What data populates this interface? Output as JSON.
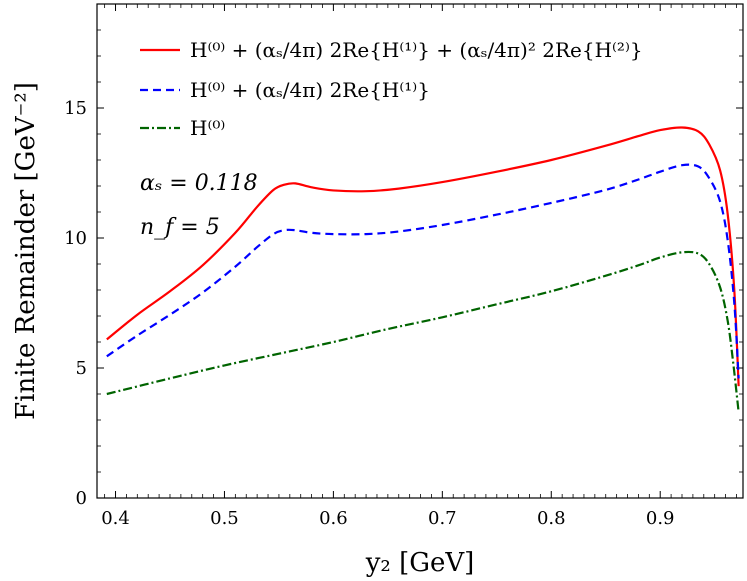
{
  "chart_data": {
    "type": "line",
    "xlabel": "y₂ [GeV]",
    "ylabel": "Finite Remainder [GeV⁻²]",
    "xlim": [
      0.383,
      0.976
    ],
    "ylim": [
      0,
      19
    ],
    "x_ticks": [
      0.4,
      0.5,
      0.6,
      0.7,
      0.8,
      0.9
    ],
    "y_ticks": [
      0,
      5,
      10,
      15
    ],
    "x_tick_labels": [
      "0.4",
      "0.5",
      "0.6",
      "0.7",
      "0.8",
      "0.9"
    ],
    "y_tick_labels": [
      "0",
      "5",
      "10",
      "15"
    ],
    "legend_position": "top-left",
    "grid": false,
    "annotations": [
      "αₛ = 0.118",
      "n_f = 5"
    ],
    "series": [
      {
        "name": "H⁽⁰⁾ + (αₛ/4π) 2Re{H⁽¹⁾} + (αₛ/4π)² 2Re{H⁽²⁾}",
        "color": "#ff0000",
        "dash": "solid",
        "x": [
          0.392,
          0.42,
          0.45,
          0.48,
          0.51,
          0.53,
          0.545,
          0.555,
          0.565,
          0.58,
          0.6,
          0.63,
          0.66,
          0.7,
          0.75,
          0.8,
          0.85,
          0.88,
          0.9,
          0.92,
          0.935,
          0.945,
          0.955,
          0.962,
          0.968,
          0.972
        ],
        "y": [
          6.1,
          7.05,
          7.95,
          8.95,
          10.2,
          11.2,
          11.85,
          12.05,
          12.1,
          11.95,
          11.83,
          11.8,
          11.9,
          12.15,
          12.55,
          13.0,
          13.55,
          13.92,
          14.15,
          14.25,
          14.1,
          13.6,
          12.6,
          10.9,
          8.0,
          4.3
        ]
      },
      {
        "name": "H⁽⁰⁾ + (αₛ/4π) 2Re{H⁽¹⁾}",
        "color": "#0000ff",
        "dash": "dashed",
        "x": [
          0.392,
          0.42,
          0.45,
          0.48,
          0.51,
          0.53,
          0.545,
          0.555,
          0.565,
          0.58,
          0.6,
          0.63,
          0.66,
          0.7,
          0.75,
          0.8,
          0.85,
          0.88,
          0.9,
          0.92,
          0.935,
          0.945,
          0.955,
          0.962,
          0.968,
          0.972
        ],
        "y": [
          5.45,
          6.25,
          7.05,
          7.9,
          8.9,
          9.65,
          10.15,
          10.3,
          10.3,
          10.2,
          10.15,
          10.15,
          10.25,
          10.5,
          10.9,
          11.35,
          11.85,
          12.25,
          12.55,
          12.8,
          12.75,
          12.3,
          11.4,
          9.9,
          7.5,
          4.6
        ]
      },
      {
        "name": "H⁽⁰⁾",
        "color": "#006400",
        "dash": "dashdot",
        "x": [
          0.392,
          0.45,
          0.5,
          0.55,
          0.6,
          0.65,
          0.7,
          0.75,
          0.8,
          0.85,
          0.88,
          0.9,
          0.92,
          0.935,
          0.945,
          0.955,
          0.962,
          0.967,
          0.972
        ],
        "y": [
          4.0,
          4.6,
          5.1,
          5.55,
          6.0,
          6.5,
          6.95,
          7.45,
          7.95,
          8.55,
          8.95,
          9.25,
          9.45,
          9.4,
          9.0,
          8.1,
          6.8,
          5.2,
          3.3
        ]
      }
    ]
  }
}
